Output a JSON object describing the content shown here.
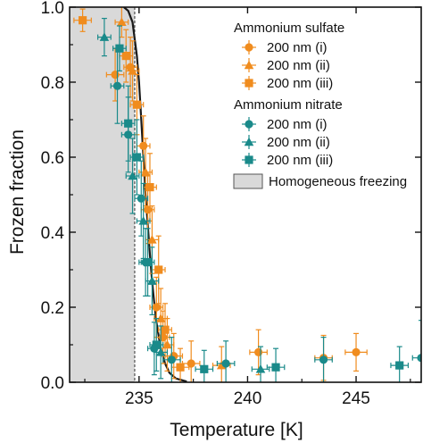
{
  "chart_data": {
    "type": "scatter",
    "xlabel": "Temperature [K]",
    "ylabel": "Frozen fraction",
    "xlim": [
      231.8,
      248
    ],
    "ylim": [
      0,
      1.0
    ],
    "x_ticks": [
      235,
      240,
      245
    ],
    "x_tick_labels": [
      "235",
      "240",
      "245"
    ],
    "y_ticks": [
      0,
      0.2,
      0.4,
      0.6,
      0.8,
      1.0
    ],
    "y_tick_labels": [
      "0.0",
      "0.2",
      "0.4",
      "0.6",
      "0.8",
      "1.0"
    ],
    "grid": false,
    "legend_position": "top-right",
    "legend_groups": [
      {
        "title": "Ammonium sulfate",
        "entries": [
          "200 nm (i)",
          "200 nm (ii)",
          "200 nm (iii)"
        ]
      },
      {
        "title": "Ammonium nitrate",
        "entries": [
          "200 nm (i)",
          "200 nm (ii)",
          "200 nm (iii)"
        ]
      }
    ],
    "shaded_region": {
      "label": "Homogeneous freezing",
      "x_from": 231.8,
      "x_to": 234.8,
      "color": "#d9d9d9"
    },
    "curve": {
      "color": "#1a1a1a",
      "points": [
        [
          234.3,
          1.0
        ],
        [
          234.5,
          0.99
        ],
        [
          234.7,
          0.96
        ],
        [
          234.9,
          0.87
        ],
        [
          235.0,
          0.8
        ],
        [
          235.1,
          0.7
        ],
        [
          235.2,
          0.6
        ],
        [
          235.3,
          0.5
        ],
        [
          235.4,
          0.42
        ],
        [
          235.5,
          0.34
        ],
        [
          235.6,
          0.27
        ],
        [
          235.7,
          0.21
        ],
        [
          235.8,
          0.16
        ],
        [
          236.0,
          0.09
        ],
        [
          236.2,
          0.05
        ],
        [
          236.4,
          0.025
        ],
        [
          236.7,
          0.01
        ],
        [
          237.2,
          0.002
        ]
      ]
    },
    "series": [
      {
        "name": "200 nm (i)",
        "group": "Ammonium sulfate",
        "marker": "circle",
        "color": "#f08c1e",
        "points": [
          {
            "x": 233.9,
            "y": 0.82,
            "xerr": 0.4,
            "yerr": 0.07
          },
          {
            "x": 234.6,
            "y": 0.84,
            "xerr": 0.3,
            "yerr": 0.08
          },
          {
            "x": 235.2,
            "y": 0.63,
            "xerr": 0.3,
            "yerr": 0.08
          },
          {
            "x": 235.4,
            "y": 0.46,
            "xerr": 0.3,
            "yerr": 0.09
          },
          {
            "x": 235.8,
            "y": 0.2,
            "xerr": 0.3,
            "yerr": 0.08
          },
          {
            "x": 236.1,
            "y": 0.12,
            "xerr": 0.3,
            "yerr": 0.07
          },
          {
            "x": 236.6,
            "y": 0.07,
            "xerr": 0.4,
            "yerr": 0.06
          },
          {
            "x": 237.4,
            "y": 0.05,
            "xerr": 0.4,
            "yerr": 0.06
          },
          {
            "x": 240.5,
            "y": 0.08,
            "xerr": 0.4,
            "yerr": 0.06
          },
          {
            "x": 243.5,
            "y": 0.065,
            "xerr": 0.4,
            "yerr": 0.06
          },
          {
            "x": 245.0,
            "y": 0.08,
            "xerr": 0.5,
            "yerr": 0.05
          }
        ]
      },
      {
        "name": "200 nm (ii)",
        "group": "Ammonium sulfate",
        "marker": "triangle",
        "color": "#f08c1e",
        "points": [
          {
            "x": 234.2,
            "y": 0.96,
            "xerr": 0.3,
            "yerr": 0.04
          },
          {
            "x": 234.7,
            "y": 0.83,
            "xerr": 0.3,
            "yerr": 0.08
          },
          {
            "x": 235.3,
            "y": 0.56,
            "xerr": 0.3,
            "yerr": 0.09
          },
          {
            "x": 235.6,
            "y": 0.38,
            "xerr": 0.3,
            "yerr": 0.09
          },
          {
            "x": 236.0,
            "y": 0.17,
            "xerr": 0.3,
            "yerr": 0.08
          },
          {
            "x": 236.3,
            "y": 0.1,
            "xerr": 0.3,
            "yerr": 0.07
          },
          {
            "x": 238.8,
            "y": 0.045,
            "xerr": 0.4,
            "yerr": 0.05
          }
        ]
      },
      {
        "name": "200 nm (iii)",
        "group": "Ammonium sulfate",
        "marker": "square",
        "color": "#f08c1e",
        "points": [
          {
            "x": 232.4,
            "y": 0.965,
            "xerr": 0.4,
            "yerr": 0.03
          },
          {
            "x": 234.4,
            "y": 0.87,
            "xerr": 0.3,
            "yerr": 0.07
          },
          {
            "x": 234.9,
            "y": 0.74,
            "xerr": 0.3,
            "yerr": 0.08
          },
          {
            "x": 235.5,
            "y": 0.52,
            "xerr": 0.3,
            "yerr": 0.09
          },
          {
            "x": 235.9,
            "y": 0.3,
            "xerr": 0.3,
            "yerr": 0.09
          },
          {
            "x": 236.2,
            "y": 0.14,
            "xerr": 0.3,
            "yerr": 0.07
          },
          {
            "x": 236.9,
            "y": 0.04,
            "xerr": 0.4,
            "yerr": 0.05
          }
        ]
      },
      {
        "name": "200 nm (i)",
        "group": "Ammonium nitrate",
        "marker": "circle",
        "color": "#1a8a8a",
        "points": [
          {
            "x": 234.0,
            "y": 0.79,
            "xerr": 0.3,
            "yerr": 0.1
          },
          {
            "x": 234.5,
            "y": 0.66,
            "xerr": 0.3,
            "yerr": 0.1
          },
          {
            "x": 235.1,
            "y": 0.49,
            "xerr": 0.3,
            "yerr": 0.1
          },
          {
            "x": 235.3,
            "y": 0.32,
            "xerr": 0.3,
            "yerr": 0.09
          },
          {
            "x": 235.7,
            "y": 0.09,
            "xerr": 0.3,
            "yerr": 0.07
          },
          {
            "x": 236.5,
            "y": 0.06,
            "xerr": 0.4,
            "yerr": 0.06
          },
          {
            "x": 239.0,
            "y": 0.05,
            "xerr": 0.4,
            "yerr": 0.06
          },
          {
            "x": 243.5,
            "y": 0.06,
            "xerr": 0.4,
            "yerr": 0.06
          },
          {
            "x": 248.0,
            "y": 0.065,
            "xerr": 0.4,
            "yerr": 0.1
          }
        ]
      },
      {
        "name": "200 nm (ii)",
        "group": "Ammonium nitrate",
        "marker": "triangle",
        "color": "#1a8a8a",
        "points": [
          {
            "x": 233.4,
            "y": 0.92,
            "xerr": 0.3,
            "yerr": 0.05
          },
          {
            "x": 234.7,
            "y": 0.55,
            "xerr": 0.3,
            "yerr": 0.1
          },
          {
            "x": 235.2,
            "y": 0.43,
            "xerr": 0.3,
            "yerr": 0.1
          },
          {
            "x": 235.6,
            "y": 0.27,
            "xerr": 0.3,
            "yerr": 0.09
          },
          {
            "x": 236.0,
            "y": 0.08,
            "xerr": 0.3,
            "yerr": 0.07
          },
          {
            "x": 240.6,
            "y": 0.035,
            "xerr": 0.4,
            "yerr": 0.06
          }
        ]
      },
      {
        "name": "200 nm (iii)",
        "group": "Ammonium nitrate",
        "marker": "square",
        "color": "#1a8a8a",
        "points": [
          {
            "x": 234.1,
            "y": 0.89,
            "xerr": 0.3,
            "yerr": 0.06
          },
          {
            "x": 234.5,
            "y": 0.69,
            "xerr": 0.3,
            "yerr": 0.1
          },
          {
            "x": 234.9,
            "y": 0.6,
            "xerr": 0.3,
            "yerr": 0.1
          },
          {
            "x": 235.4,
            "y": 0.32,
            "xerr": 0.3,
            "yerr": 0.09
          },
          {
            "x": 235.8,
            "y": 0.1,
            "xerr": 0.3,
            "yerr": 0.07
          },
          {
            "x": 238.0,
            "y": 0.035,
            "xerr": 0.4,
            "yerr": 0.05
          },
          {
            "x": 241.3,
            "y": 0.04,
            "xerr": 0.4,
            "yerr": 0.05
          },
          {
            "x": 247.0,
            "y": 0.045,
            "xerr": 0.4,
            "yerr": 0.05
          }
        ]
      }
    ]
  }
}
